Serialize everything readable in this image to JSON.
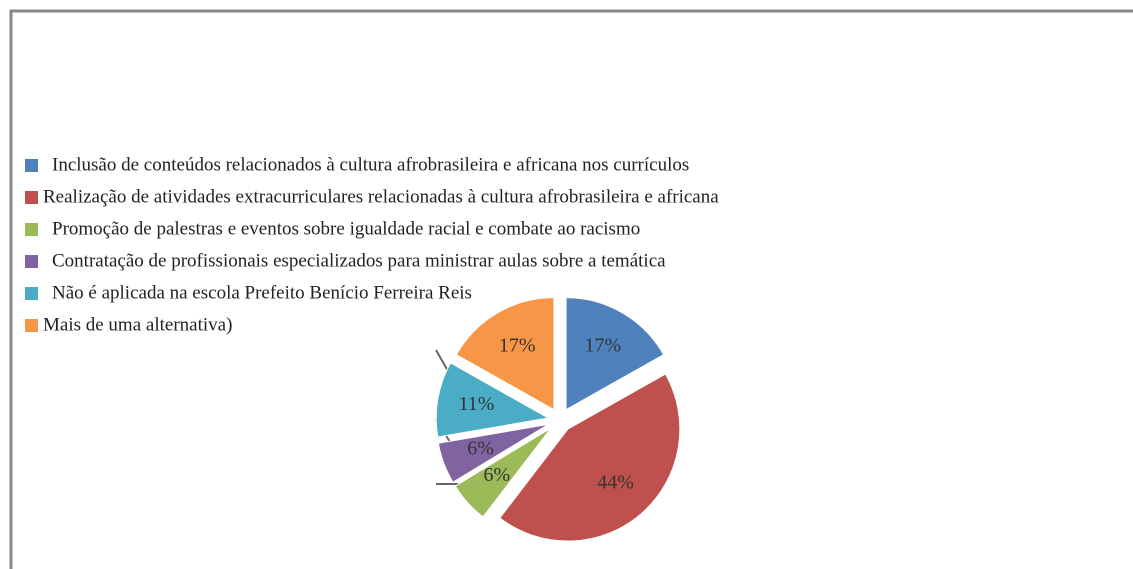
{
  "chart_data": {
    "type": "pie",
    "categories": [
      "Inclusão de conteúdos relacionados à cultura afrobrasileira e africana nos currículos",
      "Realização de atividades extracurriculares relacionadas à cultura afrobrasileira e africana",
      "Promoção de palestras e eventos sobre igualdade racial e combate ao racismo",
      "Contratação de profissionais especializados para ministrar aulas sobre a temática",
      "Não é aplicada na escola Prefeito Benício Ferreira Reis",
      "Mais de uma alternativa)"
    ],
    "values": [
      17,
      44,
      6,
      6,
      11,
      17
    ],
    "value_labels": [
      "17%",
      "44%",
      "6%",
      "6%",
      "11%",
      "17%"
    ],
    "colors": [
      "#4f81bd",
      "#c0504d",
      "#9bbb59",
      "#8064a2",
      "#4bacc6",
      "#f79646"
    ],
    "legend": "left"
  }
}
